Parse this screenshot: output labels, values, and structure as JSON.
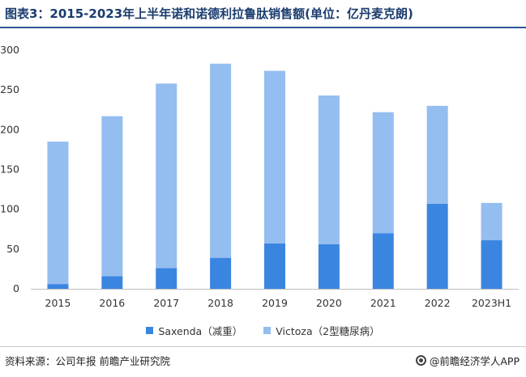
{
  "title": "图表3：2015-2023年上半年诺和诺德利拉鲁肽销售额(单位：亿丹麦克朗)",
  "source": "资料来源：公司年报 前瞻产业研究院",
  "brand": "@前瞻经济学人APP",
  "chart_data": {
    "type": "bar",
    "stacked": true,
    "categories": [
      "2015",
      "2016",
      "2017",
      "2018",
      "2019",
      "2020",
      "2021",
      "2022",
      "2023H1"
    ],
    "series": [
      {
        "name": "Saxenda（减重）",
        "color": "#3a85e0",
        "values": [
          6,
          16,
          26,
          39,
          57,
          56,
          70,
          107,
          61
        ]
      },
      {
        "name": "Victoza（2型糖尿病）",
        "color": "#94bdf0",
        "values": [
          179,
          201,
          232,
          244,
          217,
          187,
          152,
          123,
          47
        ]
      }
    ],
    "ylim": [
      0,
      300
    ],
    "yticks": [
      0,
      50,
      100,
      150,
      200,
      250,
      300
    ],
    "grid": false,
    "legend": "bottom"
  }
}
